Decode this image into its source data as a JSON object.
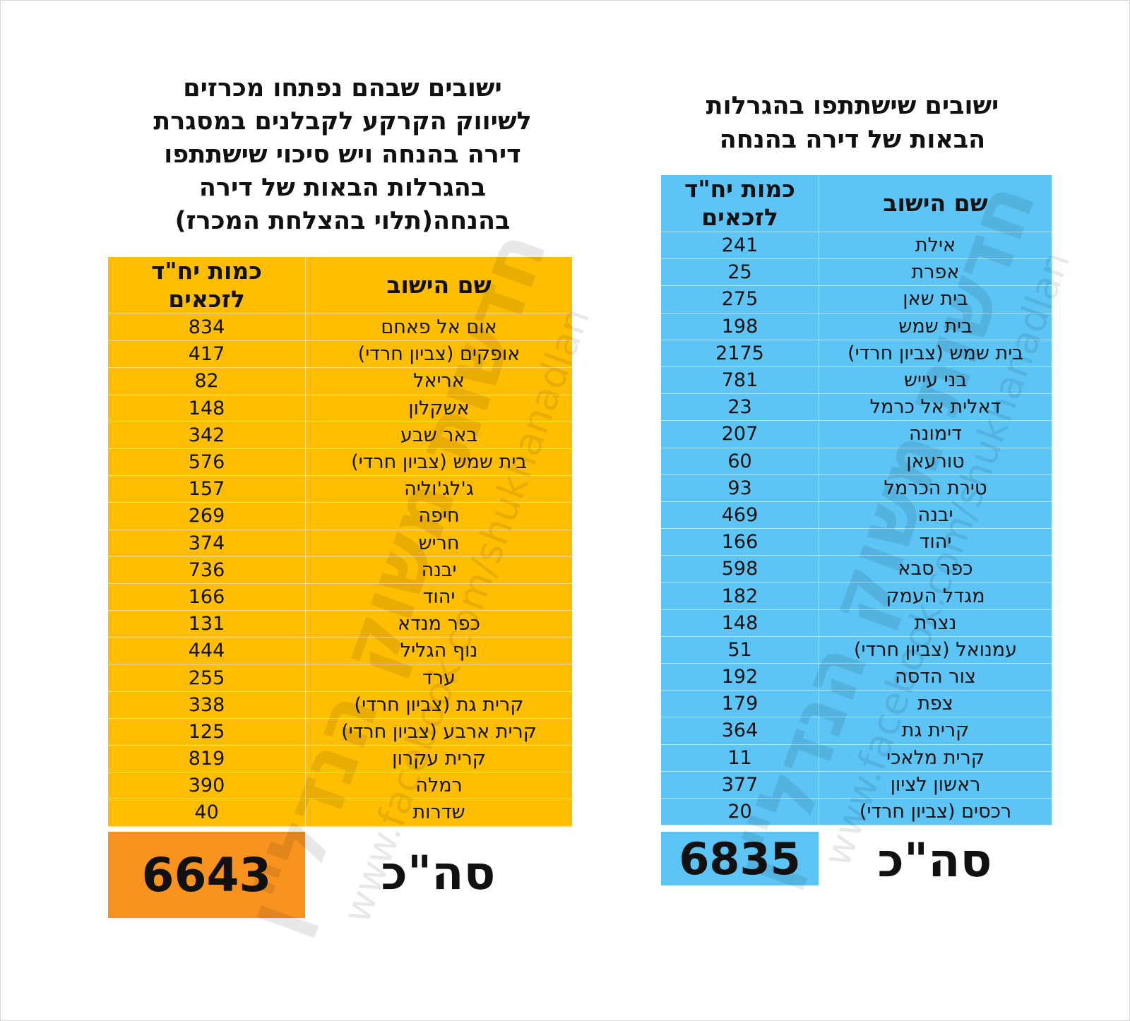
{
  "left_panel": {
    "title_lines": [
      "ישובים שבהם נפתחו מכרזים",
      "לשיווק הקרקע לקבלנים במסגרת",
      "דירה בהנחה ויש סיכוי שישתתפו",
      "בהגרלות הבאות של דירה",
      "בהנחה(תלוי בהצלחת המכרז)"
    ],
    "header": {
      "name": "שם הישוב",
      "qty_line1": "כמות יח\"ד",
      "qty_line2": "לזכאים"
    },
    "rows": [
      {
        "name": "אום אל פאחם",
        "qty": "834"
      },
      {
        "name": "אופקים (צביון חרדי)",
        "qty": "417"
      },
      {
        "name": "אריאל",
        "qty": "82"
      },
      {
        "name": "אשקלון",
        "qty": "148"
      },
      {
        "name": "באר שבע",
        "qty": "342"
      },
      {
        "name": "בית שמש (צביון חרדי)",
        "qty": "576"
      },
      {
        "name": "ג'לג'וליה",
        "qty": "157"
      },
      {
        "name": "חיפה",
        "qty": "269"
      },
      {
        "name": "חריש",
        "qty": "374"
      },
      {
        "name": "יבנה",
        "qty": "736"
      },
      {
        "name": "יהוד",
        "qty": "166"
      },
      {
        "name": "כפר מנדא",
        "qty": "131"
      },
      {
        "name": "נוף הגליל",
        "qty": "444"
      },
      {
        "name": "ערד",
        "qty": "255"
      },
      {
        "name": "קרית גת (צביון חרדי)",
        "qty": "338"
      },
      {
        "name": "קרית ארבע (צביון חרדי)",
        "qty": "125"
      },
      {
        "name": "קרית עקרון",
        "qty": "819"
      },
      {
        "name": "רמלה",
        "qty": "390"
      },
      {
        "name": "שדרות",
        "qty": "40"
      }
    ],
    "total_label": "סה\"כ",
    "total_value": "6643"
  },
  "right_panel": {
    "title_lines": [
      "ישובים שישתתפו בהגרלות",
      "הבאות של דירה בהנחה"
    ],
    "header": {
      "name": "שם הישוב",
      "qty_line1": "כמות יח\"ד",
      "qty_line2": "לזכאים"
    },
    "rows": [
      {
        "name": "אילת",
        "qty": "241"
      },
      {
        "name": "אפרת",
        "qty": "25"
      },
      {
        "name": "בית שאן",
        "qty": "275"
      },
      {
        "name": "בית שמש",
        "qty": "198"
      },
      {
        "name": "בית שמש (צביון חרדי)",
        "qty": "2175"
      },
      {
        "name": "בני עייש",
        "qty": "781"
      },
      {
        "name": "דאלית אל כרמל",
        "qty": "23"
      },
      {
        "name": "דימונה",
        "qty": "207"
      },
      {
        "name": "טורעאן",
        "qty": "60"
      },
      {
        "name": "טירת הכרמל",
        "qty": "93"
      },
      {
        "name": "יבנה",
        "qty": "469"
      },
      {
        "name": "יהוד",
        "qty": "166"
      },
      {
        "name": "כפר סבא",
        "qty": "598"
      },
      {
        "name": "מגדל העמק",
        "qty": "182"
      },
      {
        "name": "נצרת",
        "qty": "148"
      },
      {
        "name": "עמנואל (צביון חרדי)",
        "qty": "51"
      },
      {
        "name": "צור הדסה",
        "qty": "192"
      },
      {
        "name": "צפת",
        "qty": "179"
      },
      {
        "name": "קרית גת",
        "qty": "364"
      },
      {
        "name": "קרית מלאכי",
        "qty": "11"
      },
      {
        "name": "ראשון לציון",
        "qty": "377"
      },
      {
        "name": "רכסים (צביון חרדי)",
        "qty": "20"
      }
    ],
    "total_label": "סה\"כ",
    "total_value": "6835"
  },
  "watermark": {
    "main_text": "חדשות משוק הנדל\"ן",
    "url_text": "www.facebook.com/shukhanadlan"
  },
  "colors": {
    "left_table_bg": "#ffbf00",
    "left_total_bg": "#f7931e",
    "right_table_bg": "#5cc5f5"
  }
}
